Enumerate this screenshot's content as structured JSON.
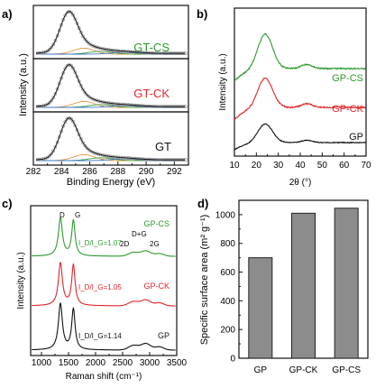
{
  "chart_data": [
    {
      "panel": "a)",
      "type": "line",
      "xlabel": "Binding Energy (eV)",
      "ylabel": "Intensity (a.u.)",
      "xlim": [
        282,
        293
      ],
      "ticks": [
        "282",
        "284",
        "286",
        "288",
        "290",
        "292"
      ],
      "stacked_panels": [
        {
          "name": "GT-CS",
          "color": "#2e9a2e"
        },
        {
          "name": "GT-CK",
          "color": "#e0262a"
        },
        {
          "name": "GT",
          "color": "#111111"
        }
      ],
      "peak": 284.5
    },
    {
      "panel": "b)",
      "type": "line",
      "xlabel": "2θ (°)",
      "ylabel": "Intensity (a.u.)",
      "xlim": [
        10,
        70
      ],
      "ticks": [
        "10",
        "20",
        "30",
        "40",
        "50",
        "60",
        "70"
      ],
      "series": [
        {
          "name": "GP-CS",
          "color": "#2e9a2e"
        },
        {
          "name": "GP-CK",
          "color": "#e0262a"
        },
        {
          "name": "GP",
          "color": "#111111"
        }
      ],
      "peak": 24
    },
    {
      "panel": "c)",
      "type": "line",
      "xlabel": "Raman shift (cm⁻¹)",
      "ylabel": "Intensity (a.u.)",
      "xlim": [
        800,
        3500
      ],
      "ticks": [
        "1000",
        "1500",
        "2000",
        "2500",
        "3000",
        "3500"
      ],
      "band_labels": {
        "d": "D",
        "g": "G",
        "d_plus_g": "D+G",
        "two_d": "2D",
        "two_g": "2G"
      },
      "series": [
        {
          "name": "GP-CS",
          "ratio": "I_D/I_G=1.07",
          "color": "#2e9a2e"
        },
        {
          "name": "GP-CK",
          "ratio": "I_D/I_G=1.05",
          "color": "#e0262a"
        },
        {
          "name": "GP",
          "ratio": "I_D/I_G=1.14",
          "color": "#111111"
        }
      ],
      "d_band": 1350,
      "g_band": 1590
    },
    {
      "panel": "d)",
      "type": "bar",
      "ylabel": "Specific surface area (m² g⁻¹)",
      "categories": [
        "GP",
        "GP-CK",
        "GP-CS"
      ],
      "values": [
        700,
        1010,
        1045
      ],
      "ylim": [
        0,
        1100
      ],
      "ticks": [
        "0",
        "200",
        "400",
        "600",
        "800",
        "1000"
      ],
      "bar_color": "#8c8c8c"
    }
  ]
}
